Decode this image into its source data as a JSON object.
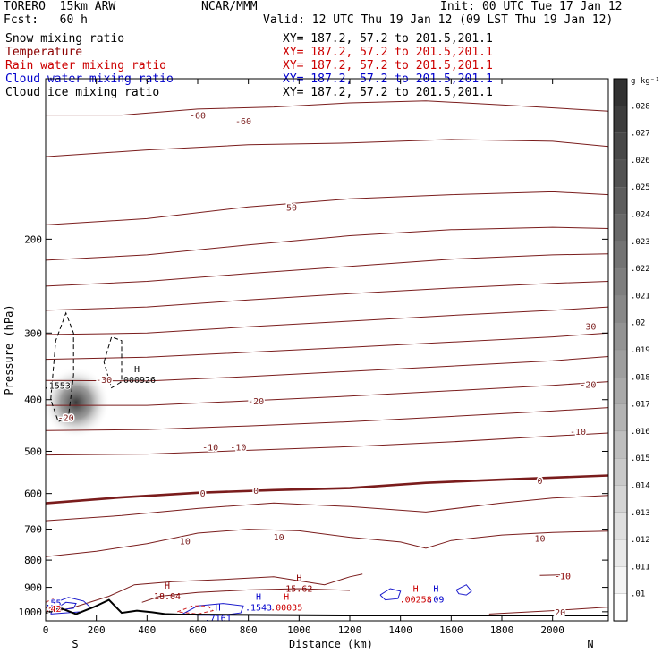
{
  "header": {
    "model": "TORERO  15km ARW",
    "org": "NCAR/MMM",
    "init": "Init: 00 UTC Tue 17 Jan 12",
    "fcst": "Fcst:   60 h",
    "valid": "Valid: 12 UTC Thu 19 Jan 12 (09 LST Thu 19 Jan 12)"
  },
  "fields": [
    {
      "name": "Snow mixing ratio",
      "xy": "XY= 187.2, 57.2 to 201.5,201.1",
      "color": "#000000"
    },
    {
      "name": "Temperature",
      "xy": "XY= 187.2, 57.2 to 201.5,201.1",
      "color": "#8b0000"
    },
    {
      "name": "Rain water mixing ratio",
      "xy": "XY= 187.2, 57.2 to 201.5,201.1",
      "color": "#cc0000"
    },
    {
      "name": "Cloud water mixing ratio",
      "xy": "XY= 187.2, 57.2 to 201.5,201.1",
      "color": "#0000cc"
    },
    {
      "name": "Cloud ice mixing ratio",
      "xy": "XY= 187.2, 57.2 to 201.5,201.1",
      "color": "#000000"
    }
  ],
  "chart_data": {
    "type": "contour",
    "xlabel": "Distance (km)",
    "ylabel": "Pressure (hPa)",
    "xlim": [
      0,
      2220
    ],
    "ylim": [
      1040,
      100
    ],
    "y_scale": "log",
    "x_ticks": [
      0,
      200,
      400,
      600,
      800,
      1000,
      1200,
      1400,
      1600,
      1800,
      2000
    ],
    "y_ticks": [
      200,
      300,
      400,
      500,
      600,
      700,
      800,
      900,
      1000
    ],
    "x_end_labels": {
      "left": "S",
      "right": "N"
    },
    "temperature_contours": [
      {
        "value": -60,
        "label": "-60",
        "points": [
          [
            0,
            117
          ],
          [
            300,
            117
          ],
          [
            600,
            114
          ],
          [
            900,
            113
          ],
          [
            1200,
            111
          ],
          [
            1500,
            110
          ],
          [
            1800,
            112
          ],
          [
            2220,
            115
          ]
        ],
        "labels": [
          [
            600,
            117,
            "-60"
          ],
          [
            780,
            120,
            "-60"
          ]
        ]
      },
      {
        "value": -55,
        "label": "",
        "points": [
          [
            0,
            140
          ],
          [
            400,
            136
          ],
          [
            800,
            133
          ],
          [
            1200,
            132
          ],
          [
            1600,
            130
          ],
          [
            2000,
            131
          ],
          [
            2220,
            134
          ]
        ],
        "labels": []
      },
      {
        "value": -50,
        "label": "-50",
        "points": [
          [
            0,
            188
          ],
          [
            400,
            183
          ],
          [
            800,
            174
          ],
          [
            1200,
            168
          ],
          [
            1600,
            165
          ],
          [
            2000,
            163
          ],
          [
            2220,
            165
          ]
        ],
        "labels": [
          [
            960,
            174,
            "-50"
          ]
        ]
      },
      {
        "value": -45,
        "label": "",
        "points": [
          [
            0,
            219
          ],
          [
            400,
            214
          ],
          [
            800,
            205
          ],
          [
            1200,
            197
          ],
          [
            1600,
            192
          ],
          [
            2000,
            190
          ],
          [
            2220,
            191
          ]
        ],
        "labels": []
      },
      {
        "value": -40,
        "label": "",
        "points": [
          [
            0,
            245
          ],
          [
            400,
            240
          ],
          [
            800,
            232
          ],
          [
            1200,
            225
          ],
          [
            1600,
            218
          ],
          [
            2000,
            214
          ],
          [
            2220,
            213
          ]
        ],
        "labels": []
      },
      {
        "value": -35,
        "label": "",
        "points": [
          [
            0,
            272
          ],
          [
            400,
            268
          ],
          [
            800,
            260
          ],
          [
            1200,
            253
          ],
          [
            1600,
            247
          ],
          [
            2000,
            242
          ],
          [
            2220,
            240
          ]
        ],
        "labels": []
      },
      {
        "value": -30,
        "label": "-30",
        "points": [
          [
            0,
            302
          ],
          [
            400,
            300
          ],
          [
            800,
            292
          ],
          [
            1200,
            285
          ],
          [
            1600,
            278
          ],
          [
            2000,
            272
          ],
          [
            2220,
            268
          ]
        ],
        "labels": [
          [
            2140,
            291,
            "-30"
          ],
          [
            230,
            366,
            "-30"
          ]
        ]
      },
      {
        "value": -25,
        "label": "",
        "points": [
          [
            0,
            336
          ],
          [
            400,
            333
          ],
          [
            800,
            326
          ],
          [
            1200,
            319
          ],
          [
            1600,
            312
          ],
          [
            2000,
            305
          ],
          [
            2220,
            300
          ]
        ],
        "labels": []
      },
      {
        "value": -20,
        "label": "-20",
        "points": [
          [
            0,
            368
          ],
          [
            400,
            369
          ],
          [
            800,
            362
          ],
          [
            1200,
            354
          ],
          [
            1600,
            346
          ],
          [
            2000,
            338
          ],
          [
            2220,
            332
          ]
        ],
        "labels": [
          [
            830,
            402,
            "-20"
          ],
          [
            2140,
            374,
            "-20"
          ],
          [
            80,
            432,
            "-20"
          ]
        ]
      },
      {
        "value": -15,
        "label": "",
        "points": [
          [
            0,
            410
          ],
          [
            400,
            410
          ],
          [
            800,
            402
          ],
          [
            1200,
            394
          ],
          [
            1600,
            385
          ],
          [
            2000,
            376
          ],
          [
            2220,
            370
          ]
        ],
        "labels": []
      },
      {
        "value": -10,
        "label": "-10",
        "points": [
          [
            0,
            457
          ],
          [
            400,
            455
          ],
          [
            800,
            448
          ],
          [
            1200,
            440
          ],
          [
            1600,
            430
          ],
          [
            2000,
            420
          ],
          [
            2220,
            414
          ]
        ],
        "labels": [
          [
            650,
            490,
            "-10"
          ],
          [
            760,
            490,
            "-10"
          ],
          [
            2100,
            458,
            "-10"
          ]
        ]
      },
      {
        "value": -5,
        "label": "",
        "points": [
          [
            0,
            508
          ],
          [
            400,
            506
          ],
          [
            800,
            498
          ],
          [
            1200,
            490
          ],
          [
            1600,
            480
          ],
          [
            2000,
            468
          ],
          [
            2220,
            462
          ]
        ],
        "labels": []
      },
      {
        "value": 0,
        "label": "0",
        "points": [
          [
            0,
            626
          ],
          [
            300,
            610
          ],
          [
            600,
            598
          ],
          [
            900,
            591
          ],
          [
            1200,
            586
          ],
          [
            1500,
            573
          ],
          [
            1800,
            565
          ],
          [
            2220,
            555
          ]
        ],
        "labels": [
          [
            620,
            598,
            "0"
          ],
          [
            830,
            591,
            "0"
          ],
          [
            1950,
            567,
            "0"
          ]
        ]
      },
      {
        "value": 5,
        "label": "",
        "points": [
          [
            0,
            675
          ],
          [
            300,
            660
          ],
          [
            600,
            640
          ],
          [
            900,
            625
          ],
          [
            1200,
            635
          ],
          [
            1500,
            650
          ],
          [
            1800,
            625
          ],
          [
            2000,
            612
          ],
          [
            2220,
            605
          ]
        ],
        "labels": []
      },
      {
        "value": 10,
        "label": "10",
        "points": [
          [
            0,
            788
          ],
          [
            200,
            770
          ],
          [
            400,
            745
          ],
          [
            600,
            712
          ],
          [
            800,
            700
          ],
          [
            1000,
            705
          ],
          [
            1200,
            725
          ],
          [
            1400,
            740
          ],
          [
            1500,
            760
          ],
          [
            1600,
            735
          ],
          [
            1800,
            718
          ],
          [
            2000,
            710
          ],
          [
            2220,
            706
          ]
        ],
        "labels": [
          [
            550,
            736,
            "10"
          ],
          [
            920,
            723,
            "10"
          ],
          [
            1950,
            727,
            "10"
          ]
        ]
      },
      {
        "value": 20,
        "label": "20",
        "points": [
          [
            1750,
            1010
          ],
          [
            2000,
            995
          ],
          [
            2220,
            980
          ]
        ],
        "labels": [
          [
            2030,
            1000,
            "20"
          ]
        ]
      }
    ],
    "highs": [
      {
        "x": 360,
        "y": 355,
        "symbol": "H",
        "value": ".000926",
        "color": "#000000"
      },
      {
        "x": 1000,
        "y": 876,
        "symbol": "H",
        "value": "15.62",
        "color": "#8b0000"
      },
      {
        "x": 480,
        "y": 905,
        "symbol": "H",
        "value": "18.04",
        "color": "#8b0000"
      },
      {
        "x": 840,
        "y": 950,
        "symbol": "H",
        "value": ".1543",
        "color": "#0000cc"
      },
      {
        "x": 950,
        "y": 950,
        "symbol": "H",
        "value": ".00035",
        "color": "#cc0000"
      },
      {
        "x": 1460,
        "y": 918,
        "symbol": "H",
        "value": ".00258",
        "color": "#cc0000"
      },
      {
        "x": 1540,
        "y": 918,
        "symbol": "H",
        "value": ".09",
        "color": "#0000cc"
      },
      {
        "x": 680,
        "y": 995,
        "symbol": "H",
        "value": ".7161",
        "color": "#0000cc"
      }
    ],
    "misc_labels": [
      {
        "x": 45,
        "y": 376,
        "text": ".1553",
        "color": "#000000"
      },
      {
        "x": 30,
        "y": 960,
        "text": ".55",
        "color": "#0000cc"
      },
      {
        "x": 30,
        "y": 985,
        "text": ".42",
        "color": "#cc0000"
      },
      {
        "x": 2040,
        "y": 855,
        "text": "-10",
        "color": "#8b0000"
      }
    ],
    "colorbar": {
      "unit": "g kg⁻¹",
      "levels": [
        ".01",
        ".011",
        ".012",
        ".013",
        ".014",
        ".015",
        ".016",
        ".017",
        ".018",
        ".019",
        ".02",
        ".021",
        ".022",
        ".023",
        ".024",
        ".025",
        ".026",
        ".027",
        ".028"
      ]
    }
  }
}
